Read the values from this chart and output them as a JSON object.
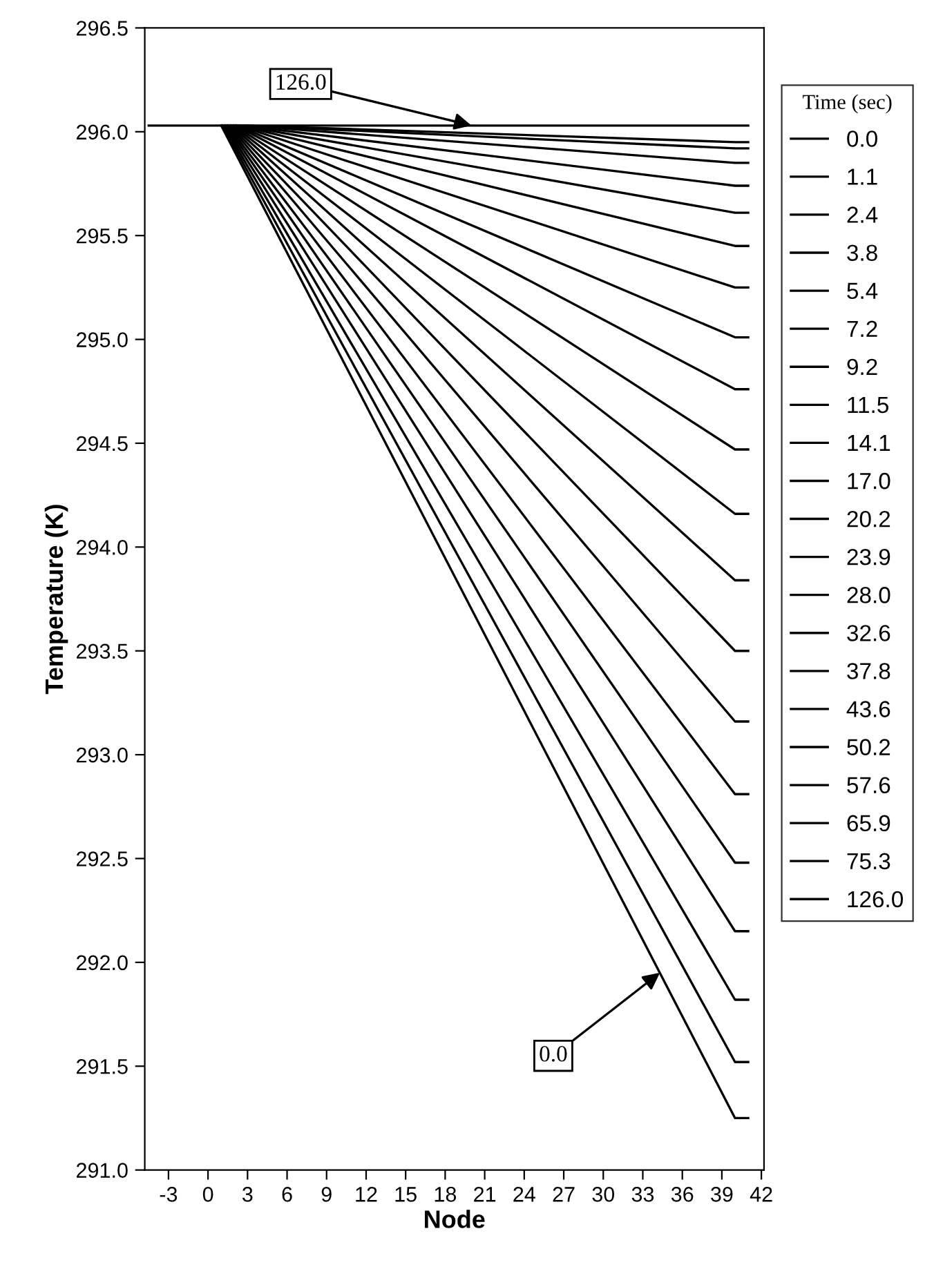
{
  "chart_data": {
    "type": "line",
    "xlabel": "Node",
    "ylabel": "Temperature (K)",
    "legend_title": "Time (sec)",
    "legend": "right",
    "grid": false,
    "marker": "none",
    "line_style": "solid",
    "xlim": [
      -4.8,
      42.2
    ],
    "xticks": [
      -3,
      0,
      3,
      6,
      9,
      12,
      15,
      18,
      21,
      24,
      27,
      30,
      33,
      36,
      39,
      42
    ],
    "ylim": [
      291.0,
      296.5
    ],
    "yticks": [
      {
        "value": 291.0,
        "label": "291.0"
      },
      {
        "value": 291.5,
        "label": "291.5"
      },
      {
        "value": 292.0,
        "label": "292.0"
      },
      {
        "value": 292.5,
        "label": "292.5"
      },
      {
        "value": 293.0,
        "label": "293.0"
      },
      {
        "value": 293.5,
        "label": "293.5"
      },
      {
        "value": 294.0,
        "label": "294.0"
      },
      {
        "value": 294.5,
        "label": "294.5"
      },
      {
        "value": 295.0,
        "label": "295.0"
      },
      {
        "value": 295.5,
        "label": "295.5"
      },
      {
        "value": 296.0,
        "label": "296.0"
      },
      {
        "value": 296.5,
        "label": "296.5"
      }
    ],
    "series": [
      {
        "name": "0.0",
        "color": "#000000",
        "x": [
          1.0,
          40,
          41
        ],
        "values": [
          296.03,
          291.25,
          291.25
        ]
      },
      {
        "name": "1.1",
        "color": "#000000",
        "x": [
          1.1,
          40,
          41
        ],
        "values": [
          296.03,
          291.52,
          291.52
        ]
      },
      {
        "name": "2.4",
        "color": "#000000",
        "x": [
          1.2,
          40,
          41
        ],
        "values": [
          296.03,
          291.82,
          291.82
        ]
      },
      {
        "name": "3.8",
        "color": "#000000",
        "x": [
          1.3,
          40,
          41
        ],
        "values": [
          296.03,
          292.15,
          292.15
        ]
      },
      {
        "name": "5.4",
        "color": "#000000",
        "x": [
          1.4,
          40,
          41
        ],
        "values": [
          296.03,
          292.48,
          292.48
        ]
      },
      {
        "name": "7.2",
        "color": "#000000",
        "x": [
          1.5,
          40,
          41
        ],
        "values": [
          296.03,
          292.81,
          292.81
        ]
      },
      {
        "name": "9.2",
        "color": "#000000",
        "x": [
          1.6,
          40,
          41
        ],
        "values": [
          296.03,
          293.16,
          293.16
        ]
      },
      {
        "name": "11.5",
        "color": "#000000",
        "x": [
          1.7,
          40,
          41
        ],
        "values": [
          296.03,
          293.5,
          293.5
        ]
      },
      {
        "name": "14.1",
        "color": "#000000",
        "x": [
          1.8,
          40,
          41
        ],
        "values": [
          296.03,
          293.84,
          293.84
        ]
      },
      {
        "name": "17.0",
        "color": "#000000",
        "x": [
          1.9,
          40,
          41
        ],
        "values": [
          296.03,
          294.16,
          294.16
        ]
      },
      {
        "name": "20.2",
        "color": "#000000",
        "x": [
          2.0,
          40,
          41
        ],
        "values": [
          296.03,
          294.47,
          294.47
        ]
      },
      {
        "name": "23.9",
        "color": "#000000",
        "x": [
          2.1,
          40,
          41
        ],
        "values": [
          296.03,
          294.76,
          294.76
        ]
      },
      {
        "name": "28.0",
        "color": "#000000",
        "x": [
          2.2,
          40,
          41
        ],
        "values": [
          296.03,
          295.01,
          295.01
        ]
      },
      {
        "name": "32.6",
        "color": "#000000",
        "x": [
          2.3,
          40,
          41
        ],
        "values": [
          296.03,
          295.25,
          295.25
        ]
      },
      {
        "name": "37.8",
        "color": "#000000",
        "x": [
          2.4,
          40,
          41
        ],
        "values": [
          296.03,
          295.45,
          295.45
        ]
      },
      {
        "name": "43.6",
        "color": "#000000",
        "x": [
          2.5,
          40,
          41
        ],
        "values": [
          296.03,
          295.61,
          295.61
        ]
      },
      {
        "name": "50.2",
        "color": "#000000",
        "x": [
          2.6,
          40,
          41
        ],
        "values": [
          296.03,
          295.74,
          295.74
        ]
      },
      {
        "name": "57.6",
        "color": "#000000",
        "x": [
          2.7,
          40,
          41
        ],
        "values": [
          296.03,
          295.85,
          295.85
        ]
      },
      {
        "name": "65.9",
        "color": "#000000",
        "x": [
          2.8,
          40,
          41
        ],
        "values": [
          296.03,
          295.92,
          295.92
        ]
      },
      {
        "name": "75.3",
        "color": "#000000",
        "x": [
          2.9,
          40,
          41
        ],
        "values": [
          296.03,
          295.95,
          295.95
        ]
      },
      {
        "name": "126.0",
        "color": "#000000",
        "x": [
          -4.5,
          41
        ],
        "values": [
          296.03,
          296.03
        ]
      }
    ],
    "annotations": [
      {
        "text": "126.0",
        "x": 20,
        "y": 296.03
      },
      {
        "text": "0.0",
        "x": 34.3,
        "y": 291.95
      }
    ]
  }
}
